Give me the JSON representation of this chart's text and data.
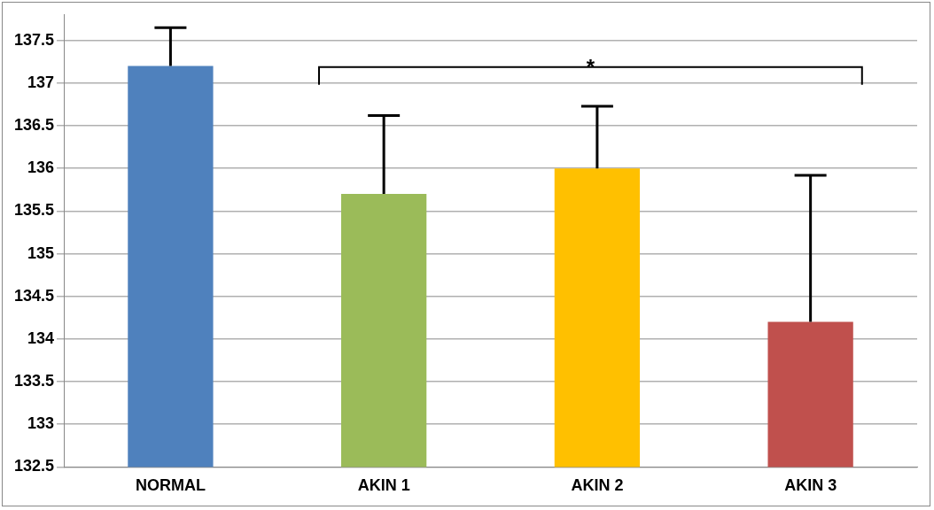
{
  "chart_data": {
    "type": "bar",
    "categories": [
      "NORMAL",
      "AKIN 1",
      "AKIN 2",
      "AKIN 3"
    ],
    "values": [
      137.2,
      135.7,
      136.0,
      134.2
    ],
    "colors": [
      "#4f81bd",
      "#9bbb59",
      "#ffc000",
      "#c0504d"
    ],
    "errors": [
      [
        137.2,
        137.65
      ],
      [
        135.7,
        136.62
      ],
      [
        136.0,
        136.73
      ],
      [
        134.2,
        135.92
      ]
    ],
    "ylim": [
      132.5,
      137.8
    ],
    "yticks": [
      132.5,
      133,
      133.5,
      134,
      134.5,
      135,
      135.5,
      136,
      136.5,
      137,
      137.5
    ],
    "grid": "y",
    "legend": false,
    "annotations": [
      "*"
    ]
  }
}
